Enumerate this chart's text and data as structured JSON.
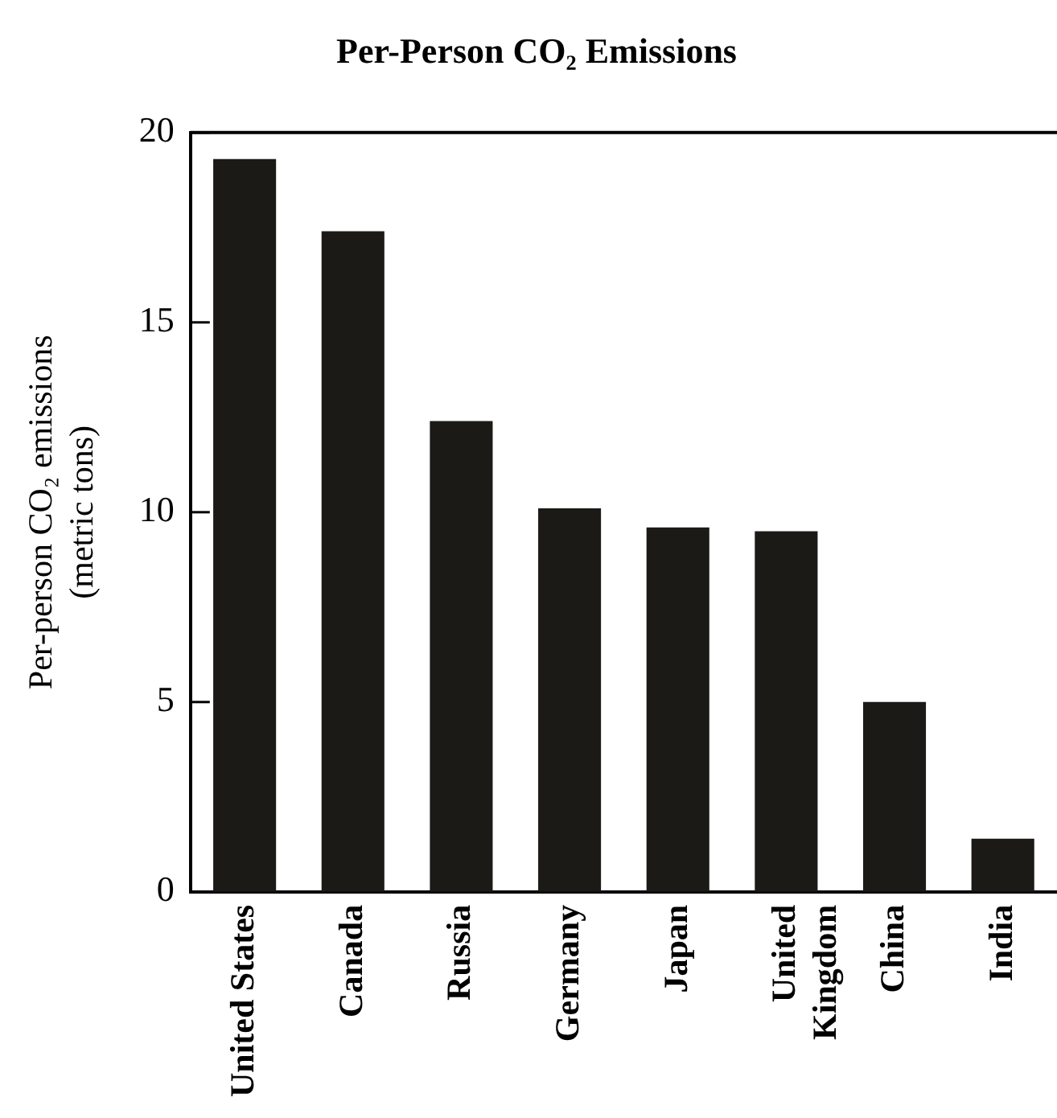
{
  "chart_data": {
    "type": "bar",
    "title": "Per-Person CO₂ Emissions",
    "ylabel": "Per-person CO₂ emissions\n(metric tons)",
    "categories": [
      "United States",
      "Canada",
      "Russia",
      "Germany",
      "Japan",
      "United\nKingdom",
      "China",
      "India"
    ],
    "values": [
      19.3,
      17.4,
      12.4,
      10.1,
      9.6,
      9.5,
      5.0,
      1.4
    ],
    "color": "#1c1a17",
    "ylim": [
      0,
      20
    ],
    "yticks": [
      0,
      5,
      10,
      15,
      20
    ]
  }
}
